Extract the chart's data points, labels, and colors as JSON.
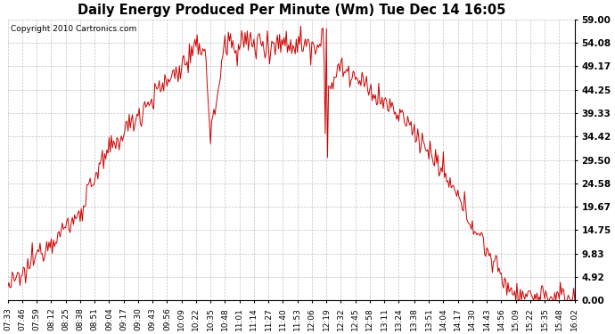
{
  "title": "Daily Energy Produced Per Minute (Wm) Tue Dec 14 16:05",
  "copyright": "Copyright 2010 Cartronics.com",
  "line_color": "#cc0000",
  "background_color": "#ffffff",
  "plot_bg_color": "#ffffff",
  "grid_color": "#999999",
  "ymin": 0.0,
  "ymax": 59.0,
  "yticks": [
    0.0,
    4.92,
    9.83,
    14.75,
    19.67,
    24.58,
    29.5,
    34.42,
    39.33,
    44.25,
    49.17,
    54.08,
    59.0
  ],
  "ytick_labels": [
    "0.00",
    "4.92",
    "9.83",
    "14.75",
    "19.67",
    "24.58",
    "29.50",
    "34.42",
    "39.33",
    "44.25",
    "49.17",
    "54.08",
    "59.00"
  ],
  "xtick_labels": [
    "07:33",
    "07:46",
    "07:59",
    "08:12",
    "08:25",
    "08:38",
    "08:51",
    "09:04",
    "09:17",
    "09:30",
    "09:43",
    "09:56",
    "10:09",
    "10:22",
    "10:35",
    "10:48",
    "11:01",
    "11:14",
    "11:27",
    "11:40",
    "11:53",
    "12:06",
    "12:19",
    "12:32",
    "12:45",
    "12:58",
    "13:11",
    "13:24",
    "13:38",
    "13:51",
    "14:04",
    "14:17",
    "14:30",
    "14:43",
    "14:56",
    "15:09",
    "15:22",
    "15:35",
    "15:48",
    "16:02"
  ]
}
